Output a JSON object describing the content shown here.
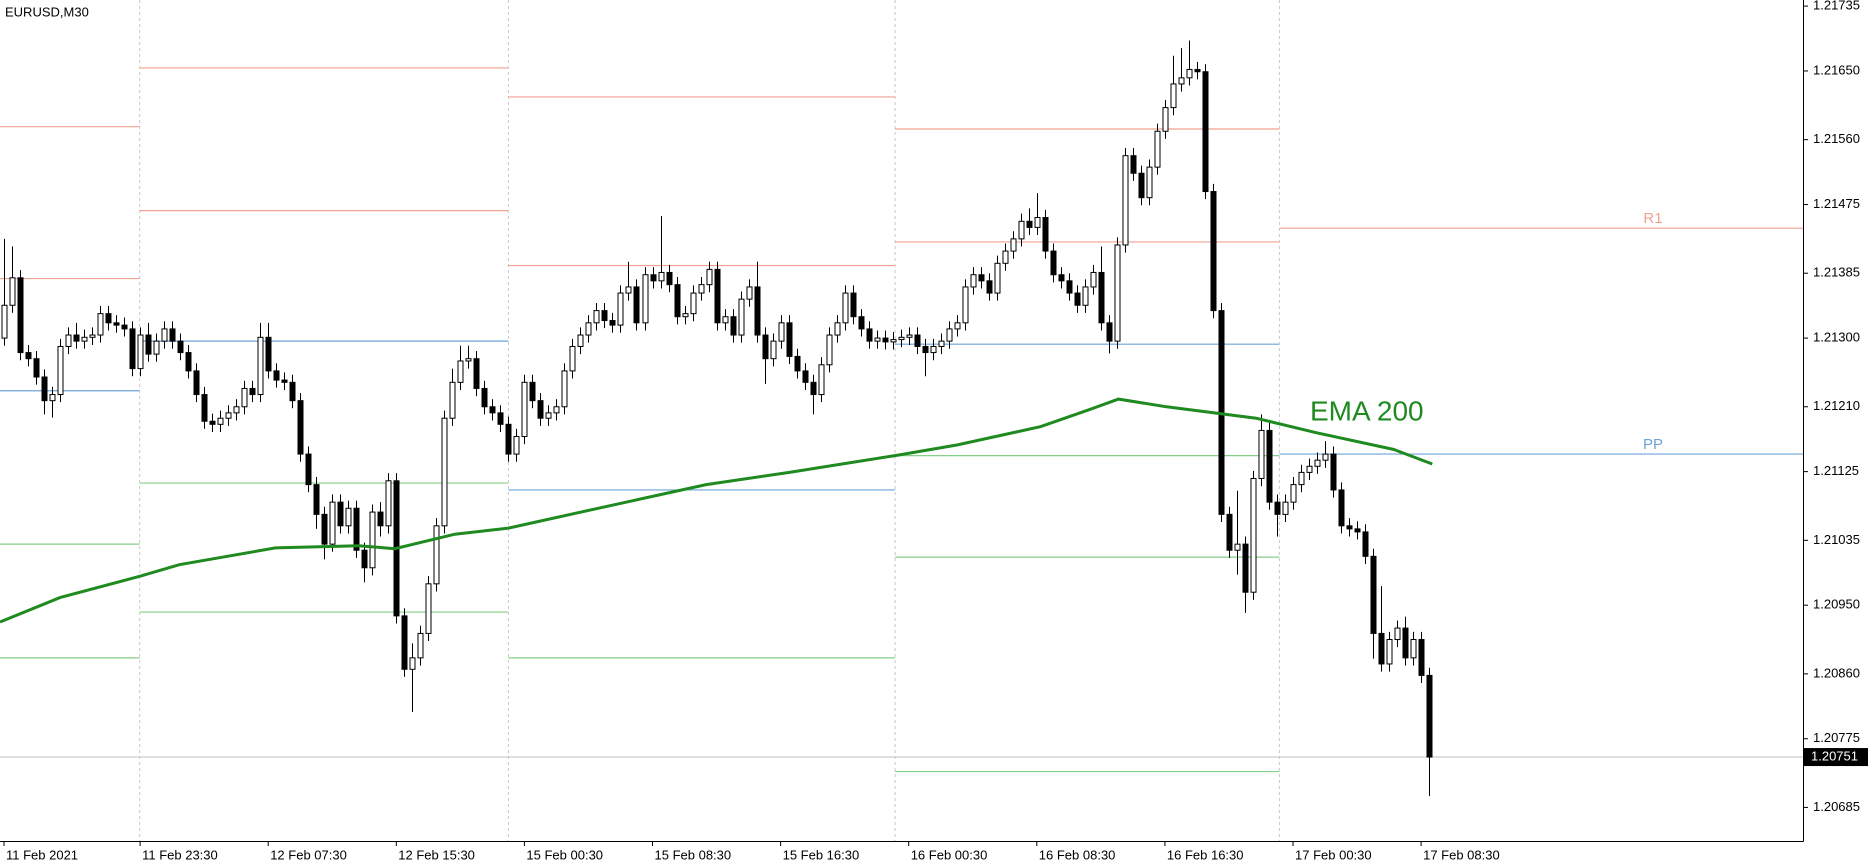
{
  "chart_data": {
    "type": "candlestick",
    "title": "EURUSD,M30",
    "categories": [
      "11 Feb 2021",
      null,
      null,
      null,
      null,
      null,
      null,
      null,
      null,
      null,
      null,
      null,
      null,
      null,
      null,
      null,
      null,
      "11 Feb 23:30",
      null,
      null,
      null,
      null,
      null,
      null,
      null,
      null,
      null,
      null,
      null,
      null,
      null,
      null,
      null,
      "12 Feb 07:30",
      null,
      null,
      null,
      null,
      null,
      null,
      null,
      null,
      null,
      null,
      null,
      null,
      null,
      null,
      null,
      "12 Feb 15:30",
      null,
      null,
      null,
      null,
      null,
      null,
      null,
      null,
      null,
      null,
      null,
      null,
      null,
      null,
      null,
      "15 Feb 00:30",
      null,
      null,
      null,
      null,
      null,
      null,
      null,
      null,
      null,
      null,
      null,
      null,
      null,
      null,
      null,
      "15 Feb 08:30",
      null,
      null,
      null,
      null,
      null,
      null,
      null,
      null,
      null,
      null,
      null,
      null,
      null,
      null,
      null,
      "15 Feb 16:30",
      null,
      null,
      null,
      null,
      null,
      null,
      null,
      null,
      null,
      null,
      null,
      null,
      null,
      null,
      null,
      "16 Feb 00:30",
      null,
      null,
      null,
      null,
      null,
      null,
      null,
      null,
      null,
      null,
      null,
      null,
      null,
      null,
      null,
      "16 Feb 08:30",
      null,
      null,
      null,
      null,
      null,
      null,
      null,
      null,
      null,
      null,
      null,
      null,
      null,
      null,
      null,
      "16 Feb 16:30",
      null,
      null,
      null,
      null,
      null,
      null,
      null,
      null,
      null,
      null,
      null,
      null,
      null,
      null,
      null,
      "17 Feb 00:30",
      null,
      null,
      null,
      null,
      null,
      null,
      null,
      null,
      null,
      null,
      null,
      null,
      null,
      null,
      null,
      "17 Feb 08:30",
      null
    ],
    "open": [
      1.213,
      1.21343,
      1.21379,
      1.21281,
      1.21273,
      1.21249,
      1.21218,
      1.21226,
      1.21289,
      1.21304,
      1.21296,
      1.21301,
      1.21304,
      1.21332,
      1.2132,
      1.21317,
      1.21312,
      1.2126,
      1.21304,
      1.21279,
      1.21296,
      1.21312,
      1.21296,
      1.21281,
      1.21257,
      1.21226,
      1.21191,
      1.21187,
      1.21195,
      1.21202,
      1.2121,
      1.21234,
      1.21226,
      1.21301,
      1.21257,
      1.21245,
      1.21242,
      1.21218,
      1.21148,
      1.21108,
      1.21069,
      1.2103,
      1.21085,
      1.21054,
      1.21077,
      1.21022,
      1.20999,
      1.21072,
      1.21054,
      1.21113,
      1.20936,
      1.20866,
      1.20881,
      1.20913,
      1.20978,
      1.21054,
      1.21195,
      1.21242,
      1.2127,
      1.21273,
      1.21234,
      1.2121,
      1.21202,
      1.21187,
      1.21148,
      1.21171,
      1.21242,
      1.21218,
      1.21195,
      1.21202,
      1.2121,
      1.21257,
      1.21289,
      1.21304,
      1.2132,
      1.21336,
      1.21323,
      1.21317,
      1.21359,
      1.21367,
      1.2132,
      1.21383,
      1.21375,
      1.21386,
      1.2137,
      1.21328,
      1.21332,
      1.21359,
      1.2137,
      1.2139,
      1.2132,
      1.21328,
      1.21304,
      1.21351,
      1.21367,
      1.21304,
      1.21273,
      1.21296,
      1.2132,
      1.21276,
      1.21257,
      1.21242,
      1.21226,
      1.21265,
      1.21304,
      1.2132,
      1.21359,
      1.21328,
      1.21312,
      1.21296,
      1.213,
      1.21295,
      1.21298,
      1.21301,
      1.21304,
      1.21289,
      1.21281,
      1.21289,
      1.21296,
      1.21312,
      1.2132,
      1.21367,
      1.21383,
      1.21375,
      1.21359,
      1.21398,
      1.21414,
      1.2143,
      1.21453,
      1.21445,
      1.21458,
      1.21414,
      1.21383,
      1.21375,
      1.21359,
      1.21343,
      1.21367,
      1.21386,
      1.2132,
      1.21296,
      1.21422,
      1.21539,
      1.21516,
      1.21484,
      1.21524,
      1.21571,
      1.21602,
      1.21633,
      1.21641,
      1.21652,
      1.21649,
      1.21492,
      1.21336,
      1.21069,
      1.21022,
      1.2103,
      1.20967,
      1.21116,
      1.21179,
      1.21085,
      1.21069,
      1.21085,
      1.21108,
      1.21124,
      1.21132,
      1.2114,
      1.21148,
      1.21101,
      1.21054,
      1.2105,
      1.21046,
      1.21014,
      1.20913,
      1.20873,
      1.20905,
      1.2092,
      1.20881,
      1.20905,
      1.20858
    ],
    "high": [
      1.2143,
      1.2142,
      1.21389,
      1.21291,
      1.21283,
      1.21259,
      1.21236,
      1.21299,
      1.21314,
      1.2132,
      1.21311,
      1.21314,
      1.21342,
      1.21342,
      1.2133,
      1.21327,
      1.21322,
      1.21314,
      1.2132,
      1.21306,
      1.21322,
      1.21322,
      1.21306,
      1.21291,
      1.21267,
      1.21236,
      1.21201,
      1.21205,
      1.21212,
      1.2122,
      1.21244,
      1.21244,
      1.2132,
      1.2132,
      1.21267,
      1.21255,
      1.21252,
      1.21228,
      1.21158,
      1.21118,
      1.21079,
      1.21095,
      1.21095,
      1.21087,
      1.21087,
      1.21032,
      1.21082,
      1.21085,
      1.21123,
      1.21123,
      1.20946,
      1.209,
      1.20923,
      1.20988,
      1.21064,
      1.21205,
      1.2126,
      1.2129,
      1.2129,
      1.21283,
      1.21244,
      1.2122,
      1.21212,
      1.21197,
      1.21181,
      1.21252,
      1.21252,
      1.21228,
      1.21212,
      1.2122,
      1.21267,
      1.21299,
      1.21314,
      1.2133,
      1.21346,
      1.21346,
      1.21333,
      1.21369,
      1.214,
      1.21377,
      1.21393,
      1.21393,
      1.2146,
      1.21396,
      1.2138,
      1.21342,
      1.21369,
      1.2138,
      1.214,
      1.214,
      1.21338,
      1.21338,
      1.21361,
      1.21377,
      1.214,
      1.21314,
      1.21306,
      1.2133,
      1.2133,
      1.21286,
      1.21267,
      1.21252,
      1.21275,
      1.21314,
      1.2133,
      1.21369,
      1.21369,
      1.21338,
      1.21322,
      1.2131,
      1.2131,
      1.21308,
      1.21311,
      1.21314,
      1.21314,
      1.21299,
      1.21299,
      1.21306,
      1.21322,
      1.2133,
      1.21377,
      1.21393,
      1.21393,
      1.21385,
      1.21408,
      1.21424,
      1.2144,
      1.21463,
      1.2147,
      1.2149,
      1.21468,
      1.21424,
      1.21393,
      1.21385,
      1.21369,
      1.21377,
      1.21396,
      1.2142,
      1.2133,
      1.21432,
      1.21549,
      1.21549,
      1.21526,
      1.21534,
      1.21581,
      1.21612,
      1.2167,
      1.2168,
      1.2169,
      1.21662,
      1.21659,
      1.21502,
      1.21346,
      1.21079,
      1.211,
      1.2104,
      1.21126,
      1.212,
      1.21189,
      1.21095,
      1.21095,
      1.21118,
      1.21134,
      1.21142,
      1.2115,
      1.21165,
      1.21158,
      1.21111,
      1.21064,
      1.2106,
      1.21056,
      1.21024,
      1.20975,
      1.20915,
      1.2093,
      1.20935,
      1.20915,
      1.20915,
      1.20868
    ],
    "low": [
      1.2129,
      1.21333,
      1.21271,
      1.21263,
      1.21239,
      1.212,
      1.21196,
      1.21216,
      1.21279,
      1.21286,
      1.21286,
      1.21291,
      1.21294,
      1.2131,
      1.21307,
      1.21302,
      1.2125,
      1.2125,
      1.21269,
      1.21269,
      1.21286,
      1.21286,
      1.21271,
      1.21247,
      1.21216,
      1.21181,
      1.21177,
      1.21177,
      1.21185,
      1.21192,
      1.212,
      1.21216,
      1.21216,
      1.21247,
      1.21235,
      1.21232,
      1.21208,
      1.21138,
      1.21098,
      1.2105,
      1.2101,
      1.2102,
      1.21044,
      1.21044,
      1.21012,
      1.2098,
      1.20989,
      1.2104,
      1.21044,
      1.20926,
      1.20856,
      1.2081,
      1.20871,
      1.20903,
      1.20968,
      1.21044,
      1.21185,
      1.21232,
      1.2126,
      1.21224,
      1.212,
      1.21192,
      1.21177,
      1.21138,
      1.21138,
      1.21161,
      1.21208,
      1.21185,
      1.21185,
      1.21192,
      1.212,
      1.21247,
      1.21279,
      1.21294,
      1.2131,
      1.21313,
      1.21307,
      1.21307,
      1.21349,
      1.2131,
      1.2131,
      1.21365,
      1.21365,
      1.2136,
      1.21318,
      1.21318,
      1.21322,
      1.21349,
      1.2136,
      1.2131,
      1.2131,
      1.21294,
      1.21294,
      1.21341,
      1.21294,
      1.2124,
      1.21263,
      1.21286,
      1.21266,
      1.21247,
      1.21232,
      1.212,
      1.21216,
      1.21255,
      1.21294,
      1.2131,
      1.21318,
      1.21302,
      1.21286,
      1.21286,
      1.21285,
      1.21285,
      1.21288,
      1.21291,
      1.21279,
      1.2125,
      1.21271,
      1.21279,
      1.21286,
      1.21302,
      1.2131,
      1.21357,
      1.21365,
      1.21349,
      1.21349,
      1.21388,
      1.21404,
      1.2142,
      1.21435,
      1.21435,
      1.21404,
      1.21373,
      1.21365,
      1.21349,
      1.21333,
      1.21333,
      1.21357,
      1.2131,
      1.2128,
      1.21286,
      1.21412,
      1.21506,
      1.21474,
      1.21474,
      1.21514,
      1.21561,
      1.21592,
      1.21623,
      1.21631,
      1.21639,
      1.21482,
      1.21326,
      1.21059,
      1.21012,
      1.2099,
      1.2094,
      1.20957,
      1.21106,
      1.21075,
      1.2104,
      1.21059,
      1.21075,
      1.21098,
      1.21114,
      1.21122,
      1.2113,
      1.21091,
      1.21044,
      1.2104,
      1.21036,
      1.21004,
      1.2088,
      1.20863,
      1.20863,
      1.20895,
      1.20871,
      1.20871,
      1.20848,
      1.207
    ],
    "close": [
      1.21343,
      1.21379,
      1.21281,
      1.21273,
      1.21249,
      1.21218,
      1.21226,
      1.21289,
      1.21304,
      1.21296,
      1.21301,
      1.21304,
      1.21332,
      1.2132,
      1.21317,
      1.21312,
      1.2126,
      1.21304,
      1.21279,
      1.21296,
      1.21312,
      1.21296,
      1.21281,
      1.21257,
      1.21226,
      1.21191,
      1.21187,
      1.21195,
      1.21202,
      1.2121,
      1.21234,
      1.21226,
      1.21301,
      1.21257,
      1.21245,
      1.21242,
      1.21218,
      1.21148,
      1.21108,
      1.21069,
      1.2103,
      1.21085,
      1.21054,
      1.21077,
      1.21022,
      1.20999,
      1.21072,
      1.21054,
      1.21113,
      1.20936,
      1.20866,
      1.20881,
      1.20913,
      1.20978,
      1.21054,
      1.21195,
      1.21242,
      1.2127,
      1.21273,
      1.21234,
      1.2121,
      1.21202,
      1.21187,
      1.21148,
      1.21171,
      1.21242,
      1.21218,
      1.21195,
      1.21202,
      1.2121,
      1.21257,
      1.21289,
      1.21304,
      1.2132,
      1.21336,
      1.21323,
      1.21317,
      1.21359,
      1.21367,
      1.2132,
      1.21383,
      1.21375,
      1.21386,
      1.2137,
      1.21328,
      1.21332,
      1.21359,
      1.2137,
      1.2139,
      1.2132,
      1.21328,
      1.21304,
      1.21351,
      1.21367,
      1.21304,
      1.21273,
      1.21296,
      1.2132,
      1.21276,
      1.21257,
      1.21242,
      1.21226,
      1.21265,
      1.21304,
      1.2132,
      1.21359,
      1.21328,
      1.21312,
      1.21296,
      1.213,
      1.21295,
      1.21298,
      1.21301,
      1.21304,
      1.21289,
      1.21281,
      1.21289,
      1.21296,
      1.21312,
      1.2132,
      1.21367,
      1.21383,
      1.21375,
      1.21359,
      1.21398,
      1.21414,
      1.2143,
      1.21453,
      1.21445,
      1.21458,
      1.21414,
      1.21383,
      1.21375,
      1.21359,
      1.21343,
      1.21367,
      1.21386,
      1.2132,
      1.21296,
      1.21422,
      1.21539,
      1.21516,
      1.21484,
      1.21524,
      1.21571,
      1.21602,
      1.21633,
      1.21641,
      1.21652,
      1.21649,
      1.21492,
      1.21336,
      1.21069,
      1.21022,
      1.2103,
      1.20967,
      1.21116,
      1.21179,
      1.21085,
      1.21069,
      1.21085,
      1.21108,
      1.21124,
      1.21132,
      1.2114,
      1.21148,
      1.21101,
      1.21054,
      1.2105,
      1.21046,
      1.21014,
      1.20913,
      1.20873,
      1.20905,
      1.2092,
      1.20881,
      1.20905,
      1.20858,
      1.20751
    ],
    "up_color": "#ffffff",
    "down_color": "#000000",
    "xlim": [
      -0.5,
      224.7
    ],
    "ylim": [
      1.20641,
      1.21743
    ],
    "yticks": [
      1.21735,
      {
        "value": 1.2165,
        "label": "1.21650"
      },
      {
        "value": 1.2156,
        "label": "1.21560"
      },
      1.21475,
      1.21385,
      {
        "value": 1.213,
        "label": "1.21300"
      },
      {
        "value": 1.2121,
        "label": "1.21210"
      },
      1.21125,
      1.21035,
      {
        "value": 1.2095,
        "label": "1.20950"
      },
      {
        "value": 1.2086,
        "label": "1.20860"
      },
      1.20775,
      1.20685
    ],
    "ema": {
      "name": "EMA 200",
      "color": "#1f8a1f",
      "x": [
        -0.5,
        7,
        17,
        21.9,
        33.9,
        44.3,
        48.8,
        56.3,
        63,
        74.2,
        87.7,
        98.1,
        111.3,
        119.1,
        129.5,
        135.5,
        139.2,
        145.2,
        156.4,
        163.9,
        173.6,
        178.4
      ],
      "values": [
        1.20928,
        1.2096,
        1.20988,
        1.21003,
        1.21025,
        1.21028,
        1.21024,
        1.21043,
        1.21051,
        1.21077,
        1.21108,
        1.21124,
        1.21146,
        1.2116,
        1.21184,
        1.21206,
        1.2122,
        1.2121,
        1.21195,
        1.21176,
        1.21154,
        1.21135
      ]
    },
    "pivots": [
      {
        "start": -0.5,
        "resistance": [
          1.21378,
          1.21577
        ],
        "pivot": 1.21231,
        "support": [
          1.2103,
          1.20881
        ]
      },
      {
        "start": 16.95,
        "resistance": [
          1.21467,
          1.21654
        ],
        "pivot": 1.21296,
        "support": [
          1.2111,
          1.20941
        ]
      },
      {
        "start": 63,
        "resistance": [
          1.21395,
          1.21616
        ],
        "pivot": 1.21101,
        "support": [
          1.20881
        ]
      },
      {
        "start": 111.3,
        "resistance": [
          1.21426,
          1.21574
        ],
        "pivot": 1.21292,
        "support": [
          1.21146,
          1.21013,
          1.20732
        ]
      },
      {
        "start": 159.3,
        "resistance": [
          1.21444
        ],
        "pivot": 1.21148,
        "support": []
      }
    ],
    "r1_label": "R1",
    "pp_label": "PP",
    "resistance_color": "#f0a290",
    "pivot_color": "#6ea3d8",
    "support_color": "#86cf86"
  }
}
